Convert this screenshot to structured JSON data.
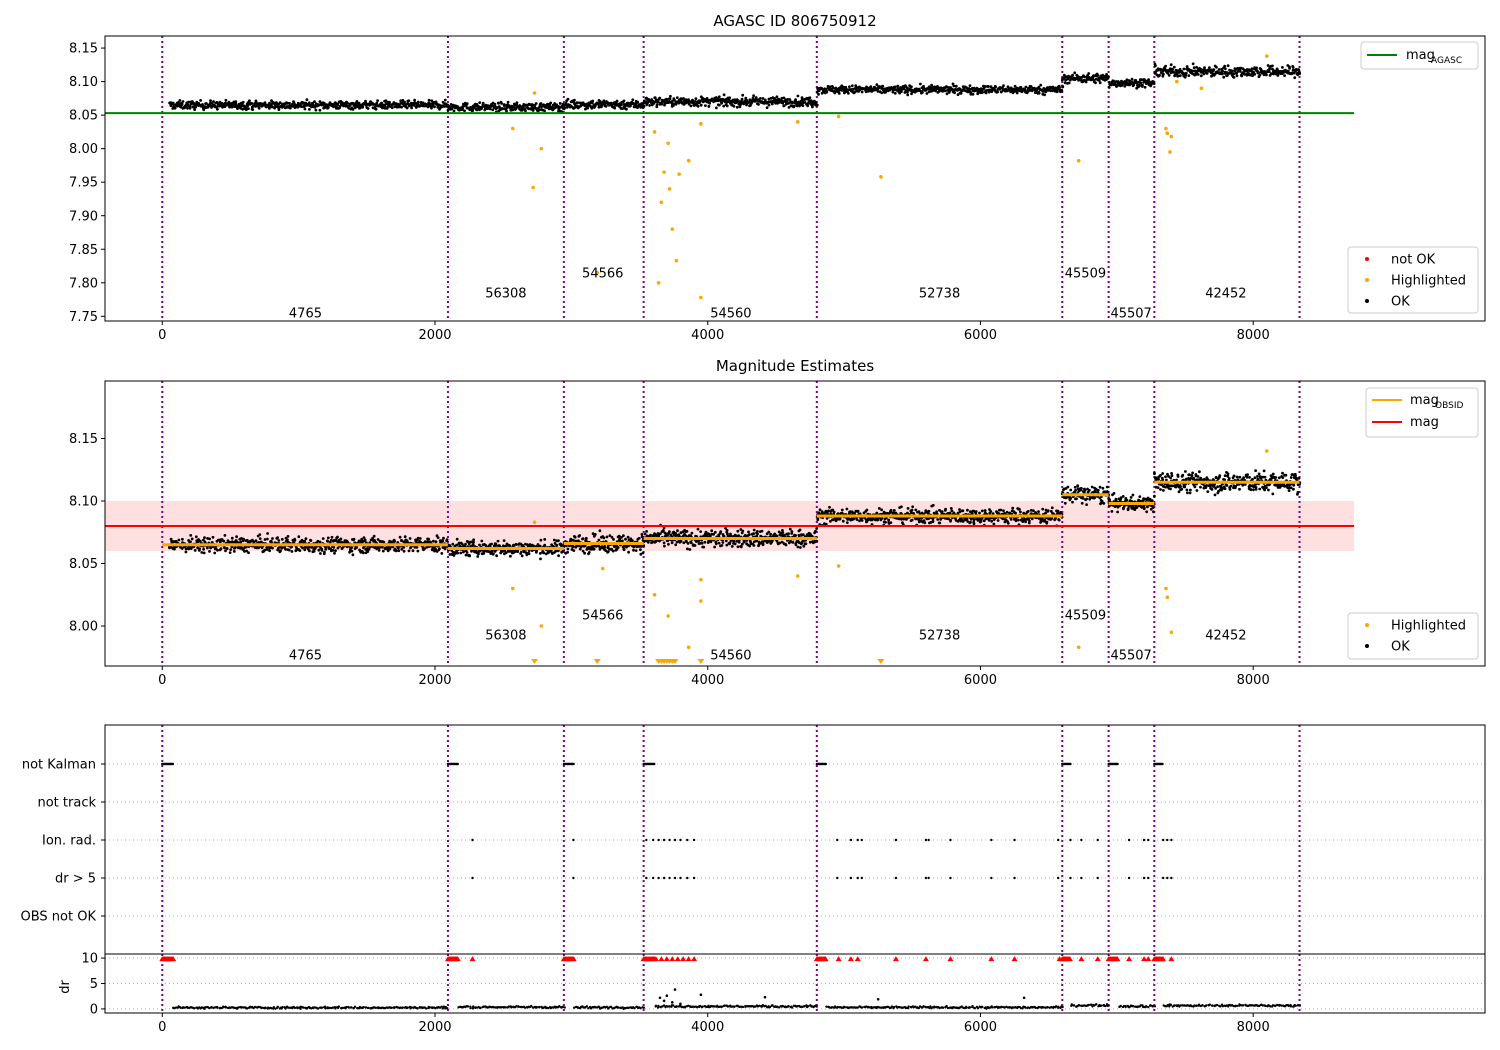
{
  "colors": {
    "ok": "#000000",
    "highlighted": "#ffa500",
    "not_ok": "#ff0000",
    "agasc_line": "#008000",
    "mag_line": "#ff0000",
    "obsid_line": "#ffa500",
    "band": "#ffcccc",
    "obsid_boundary": "#800080"
  },
  "chart_data": [
    {
      "type": "scatter",
      "title": "AGASC ID 806750912",
      "xlabel": "",
      "ylabel": "",
      "xlim": [
        -420,
        9700
      ],
      "ylim": [
        7.743,
        8.168
      ],
      "xticks": [
        0,
        2000,
        4000,
        6000,
        8000
      ],
      "yticks": [
        7.75,
        7.8,
        7.85,
        7.9,
        7.95,
        8.0,
        8.05,
        8.1,
        8.15
      ],
      "ytick_labels": [
        "7.75",
        "7.80",
        "7.85",
        "7.90",
        "7.95",
        "8.00",
        "8.05",
        "8.10",
        "8.15"
      ],
      "grid": false,
      "obsid_boundaries": [
        0,
        2095,
        2945,
        3530,
        4800,
        6600,
        6940,
        7275,
        8340
      ],
      "obsids": [
        {
          "label": "4765",
          "x": 1050,
          "y": 7.755
        },
        {
          "label": "56308",
          "x": 2520,
          "y": 7.785
        },
        {
          "label": "54566",
          "x": 3230,
          "y": 7.815
        },
        {
          "label": "54560",
          "x": 4170,
          "y": 7.755
        },
        {
          "label": "52738",
          "x": 5700,
          "y": 7.785
        },
        {
          "label": "45509",
          "x": 6770,
          "y": 7.815
        },
        {
          "label": "45507",
          "x": 7105,
          "y": 7.755
        },
        {
          "label": "42452",
          "x": 7800,
          "y": 7.785
        }
      ],
      "mag_agasc": 8.053,
      "series_levels": [
        {
          "x0": 50,
          "x1": 2095,
          "y": 8.065,
          "sd": 0.006
        },
        {
          "x0": 2095,
          "x1": 2945,
          "y": 8.062,
          "sd": 0.006
        },
        {
          "x0": 2945,
          "x1": 3530,
          "y": 8.066,
          "sd": 0.007
        },
        {
          "x0": 3530,
          "x1": 4800,
          "y": 8.07,
          "sd": 0.007
        },
        {
          "x0": 4800,
          "x1": 6600,
          "y": 8.088,
          "sd": 0.006
        },
        {
          "x0": 6600,
          "x1": 6940,
          "y": 8.105,
          "sd": 0.007
        },
        {
          "x0": 6940,
          "x1": 7275,
          "y": 8.098,
          "sd": 0.006
        },
        {
          "x0": 7275,
          "x1": 8340,
          "y": 8.115,
          "sd": 0.008
        }
      ],
      "highlighted": [
        [
          2570,
          8.03
        ],
        [
          2720,
          7.942
        ],
        [
          2780,
          8.0
        ],
        [
          2730,
          8.083
        ],
        [
          3190,
          7.815
        ],
        [
          3610,
          8.025
        ],
        [
          3660,
          7.92
        ],
        [
          3680,
          7.965
        ],
        [
          3710,
          8.008
        ],
        [
          3720,
          7.94
        ],
        [
          3740,
          7.88
        ],
        [
          3770,
          7.833
        ],
        [
          3790,
          7.962
        ],
        [
          3860,
          7.982
        ],
        [
          3640,
          7.8
        ],
        [
          3950,
          7.778
        ],
        [
          3950,
          8.037
        ],
        [
          4660,
          8.04
        ],
        [
          4960,
          8.048
        ],
        [
          5270,
          7.958
        ],
        [
          6720,
          7.982
        ],
        [
          7360,
          8.03
        ],
        [
          7370,
          8.023
        ],
        [
          7390,
          7.995
        ],
        [
          7400,
          8.018
        ],
        [
          7440,
          8.1
        ],
        [
          8100,
          8.138
        ],
        [
          7620,
          8.09
        ]
      ],
      "legend_line": {
        "label": "mag",
        "sub": "AGASC",
        "placement": "upper right"
      },
      "legend_points": [
        {
          "label": "not OK",
          "color": "#ff0000"
        },
        {
          "label": "Highlighted",
          "color": "#ffa500"
        },
        {
          "label": "OK",
          "color": "#000000"
        }
      ],
      "legend_points_placement": "lower right"
    },
    {
      "type": "scatter",
      "title": "Magnitude Estimates",
      "xlabel": "",
      "ylabel": "",
      "xlim": [
        -420,
        9700
      ],
      "ylim": [
        7.968,
        8.196
      ],
      "xticks": [
        0,
        2000,
        4000,
        6000,
        8000
      ],
      "yticks": [
        8.0,
        8.05,
        8.1,
        8.15
      ],
      "ytick_labels": [
        "8.00",
        "8.05",
        "8.10",
        "8.15"
      ],
      "grid": false,
      "obsid_boundaries": [
        0,
        2095,
        2945,
        3530,
        4800,
        6600,
        6940,
        7275,
        8340
      ],
      "obsids": [
        {
          "label": "4765",
          "x": 1050,
          "y": 7.977
        },
        {
          "label": "56308",
          "x": 2520,
          "y": 7.993
        },
        {
          "label": "54566",
          "x": 3230,
          "y": 8.009
        },
        {
          "label": "54560",
          "x": 4170,
          "y": 7.977
        },
        {
          "label": "52738",
          "x": 5700,
          "y": 7.993
        },
        {
          "label": "45509",
          "x": 6770,
          "y": 8.009
        },
        {
          "label": "45507",
          "x": 7105,
          "y": 7.977
        },
        {
          "label": "42452",
          "x": 7800,
          "y": 7.993
        }
      ],
      "mag": 8.08,
      "mag_band": [
        8.06,
        8.1
      ],
      "mag_obsid": [
        {
          "x0": 0,
          "x1": 2095,
          "y": 8.065
        },
        {
          "x0": 2095,
          "x1": 2945,
          "y": 8.062
        },
        {
          "x0": 2945,
          "x1": 3530,
          "y": 8.066
        },
        {
          "x0": 3530,
          "x1": 4800,
          "y": 8.07
        },
        {
          "x0": 4800,
          "x1": 6600,
          "y": 8.088
        },
        {
          "x0": 6600,
          "x1": 6940,
          "y": 8.105
        },
        {
          "x0": 6940,
          "x1": 7275,
          "y": 8.098
        },
        {
          "x0": 7275,
          "x1": 8340,
          "y": 8.115
        }
      ],
      "series_levels": [
        {
          "x0": 50,
          "x1": 2095,
          "y": 8.065,
          "sd": 0.006
        },
        {
          "x0": 2095,
          "x1": 2945,
          "y": 8.062,
          "sd": 0.006
        },
        {
          "x0": 2945,
          "x1": 3530,
          "y": 8.066,
          "sd": 0.007
        },
        {
          "x0": 3530,
          "x1": 4800,
          "y": 8.07,
          "sd": 0.007
        },
        {
          "x0": 4800,
          "x1": 6600,
          "y": 8.088,
          "sd": 0.006
        },
        {
          "x0": 6600,
          "x1": 6940,
          "y": 8.105,
          "sd": 0.007
        },
        {
          "x0": 6940,
          "x1": 7275,
          "y": 8.098,
          "sd": 0.006
        },
        {
          "x0": 7275,
          "x1": 8340,
          "y": 8.115,
          "sd": 0.008
        }
      ],
      "highlighted": [
        [
          2570,
          8.03
        ],
        [
          2780,
          8.0
        ],
        [
          2730,
          8.083
        ],
        [
          3230,
          8.046
        ],
        [
          3610,
          8.025
        ],
        [
          3710,
          8.008
        ],
        [
          3860,
          7.983
        ],
        [
          3950,
          8.02
        ],
        [
          3950,
          8.037
        ],
        [
          4660,
          8.04
        ],
        [
          4960,
          8.048
        ],
        [
          6720,
          7.983
        ],
        [
          7360,
          8.03
        ],
        [
          7370,
          8.023
        ],
        [
          7400,
          7.995
        ],
        [
          8100,
          8.14
        ]
      ],
      "below_range_x": [
        2730,
        3190,
        3640,
        3660,
        3680,
        3700,
        3720,
        3740,
        3760,
        3950,
        5270
      ],
      "legend_lines": [
        {
          "label": "mag",
          "sub": "OBSID",
          "color": "#ffa500"
        },
        {
          "label": "mag",
          "sub": "",
          "color": "#ff0000"
        }
      ],
      "legend_lines_placement": "upper right",
      "legend_points": [
        {
          "label": "Highlighted",
          "color": "#ffa500"
        },
        {
          "label": "OK",
          "color": "#000000"
        }
      ],
      "legend_points_placement": "lower right"
    },
    {
      "type": "scatter",
      "title": "",
      "xlabel": "",
      "ylabel": "",
      "xlim": [
        -420,
        9700
      ],
      "ylim": [
        0,
        5
      ],
      "xticks": [
        0,
        2000,
        4000,
        6000,
        8000
      ],
      "categories": [
        "not Kalman",
        "not track",
        "Ion. rad.",
        "dr > 5",
        "OBS not OK"
      ],
      "grid": true,
      "obsid_boundaries": [
        0,
        2095,
        2945,
        3530,
        4800,
        6600,
        6940,
        7275,
        8340
      ],
      "not_kalman_x": [
        [
          0,
          80
        ],
        [
          2095,
          2170
        ],
        [
          2945,
          3020
        ],
        [
          3530,
          3610
        ],
        [
          4800,
          4870
        ],
        [
          6600,
          6660
        ],
        [
          6940,
          7010
        ],
        [
          7275,
          7340
        ]
      ],
      "ion_rad_x": [
        2275,
        3015,
        3550,
        3600,
        3640,
        3680,
        3720,
        3760,
        3800,
        3850,
        3900,
        4950,
        5050,
        5100,
        5130,
        5380,
        5600,
        5620,
        5780,
        6080,
        6250,
        6570,
        6660,
        6740,
        6860,
        7090,
        7200,
        7230,
        7340,
        7370,
        7400
      ]
    },
    {
      "type": "scatter",
      "title": "",
      "xlabel": "",
      "ylabel": "dr",
      "xlim": [
        -420,
        9700
      ],
      "ylim": [
        -0.8,
        10.8
      ],
      "xticks": [
        0,
        2000,
        4000,
        6000,
        8000
      ],
      "yticks": [
        0,
        5,
        10
      ],
      "ytick_labels": [
        "0",
        "5",
        "10"
      ],
      "grid": true,
      "obsid_boundaries": [
        0,
        2095,
        2945,
        3530,
        4800,
        6600,
        6940,
        7275,
        8340
      ],
      "clipped_x": [
        [
          0,
          80
        ],
        [
          2095,
          2170
        ],
        [
          2945,
          3020
        ],
        [
          3530,
          3610
        ],
        [
          4800,
          4870
        ],
        [
          6600,
          6660
        ],
        [
          6940,
          7010
        ],
        [
          7275,
          7340
        ]
      ],
      "clipped_extra_x": [
        2275,
        3620,
        3660,
        3700,
        3740,
        3780,
        3820,
        3860,
        3900,
        4960,
        5050,
        5100,
        5380,
        5600,
        5780,
        6080,
        6250,
        6580,
        6740,
        6860,
        7090,
        7200,
        7230,
        7400
      ],
      "dr_levels": [
        {
          "x0": 80,
          "x1": 2095,
          "y": 0.25
        },
        {
          "x0": 2170,
          "x1": 2945,
          "y": 0.35
        },
        {
          "x0": 3020,
          "x1": 3530,
          "y": 0.3
        },
        {
          "x0": 3610,
          "x1": 4800,
          "y": 0.5
        },
        {
          "x0": 4870,
          "x1": 6600,
          "y": 0.3
        },
        {
          "x0": 6660,
          "x1": 6940,
          "y": 0.7
        },
        {
          "x0": 7010,
          "x1": 7275,
          "y": 0.55
        },
        {
          "x0": 7340,
          "x1": 8340,
          "y": 0.65
        }
      ]
    }
  ]
}
